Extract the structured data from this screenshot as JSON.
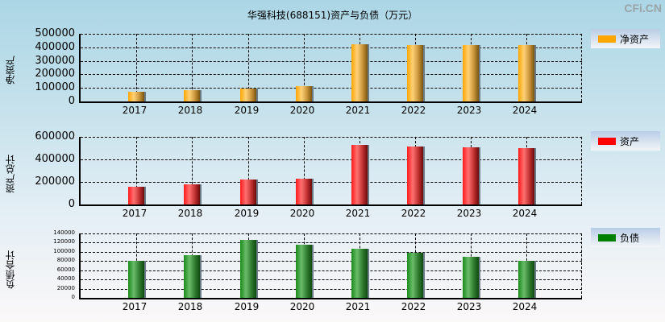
{
  "title": "华强科技(688151)资产与负债（万元）",
  "brand": "CFi.CN",
  "colors": {
    "net_assets": "#FFA500",
    "assets": "#FF0000",
    "liabilities": "#008000"
  },
  "charts": [
    {
      "ylabel": "净资产",
      "legend": "净资产",
      "yticks": [
        "500000",
        "400000",
        "300000",
        "200000",
        "100000",
        "0"
      ],
      "xticks": [
        "2017",
        "2018",
        "2019",
        "2020",
        "2021",
        "2022",
        "2023",
        "2024"
      ]
    },
    {
      "ylabel": "资产总计",
      "legend": "资产",
      "yticks": [
        "600000",
        "400000",
        "200000",
        "0"
      ],
      "xticks": [
        "2017",
        "2018",
        "2019",
        "2020",
        "2021",
        "2022",
        "2023",
        "2024"
      ]
    },
    {
      "ylabel": "负债合计",
      "legend": "负债",
      "yticks": [
        "140000",
        "120000",
        "100000",
        "80000",
        "60000",
        "40000",
        "20000",
        "0"
      ],
      "xticks": [
        "2017",
        "2018",
        "2019",
        "2020",
        "2021",
        "2022",
        "2023",
        "2024"
      ]
    }
  ],
  "chart_data": [
    {
      "type": "bar",
      "title": "华强科技(688151)资产与负债（万元）",
      "ylabel": "净资产",
      "categories": [
        "2017",
        "2018",
        "2019",
        "2020",
        "2021",
        "2022",
        "2023",
        "2024"
      ],
      "series": [
        {
          "name": "净资产",
          "color": "#FFA500",
          "values": [
            74000,
            86000,
            98000,
            115000,
            423000,
            417000,
            417000,
            417000
          ]
        }
      ],
      "ylim": [
        0,
        500000
      ],
      "grid": true,
      "legend_position": "right"
    },
    {
      "type": "bar",
      "ylabel": "资产总计",
      "categories": [
        "2017",
        "2018",
        "2019",
        "2020",
        "2021",
        "2022",
        "2023",
        "2024"
      ],
      "series": [
        {
          "name": "资产",
          "color": "#FF0000",
          "values": [
            157000,
            179000,
            221000,
            229000,
            529000,
            514000,
            507000,
            500000
          ]
        }
      ],
      "ylim": [
        0,
        600000
      ],
      "grid": true,
      "legend_position": "right"
    },
    {
      "type": "bar",
      "ylabel": "负债合计",
      "categories": [
        "2017",
        "2018",
        "2019",
        "2020",
        "2021",
        "2022",
        "2023",
        "2024"
      ],
      "series": [
        {
          "name": "负债",
          "color": "#008000",
          "values": [
            80000,
            92000,
            126000,
            115000,
            107000,
            98000,
            89000,
            80000
          ]
        }
      ],
      "ylim": [
        0,
        140000
      ],
      "grid": true,
      "legend_position": "right"
    }
  ]
}
